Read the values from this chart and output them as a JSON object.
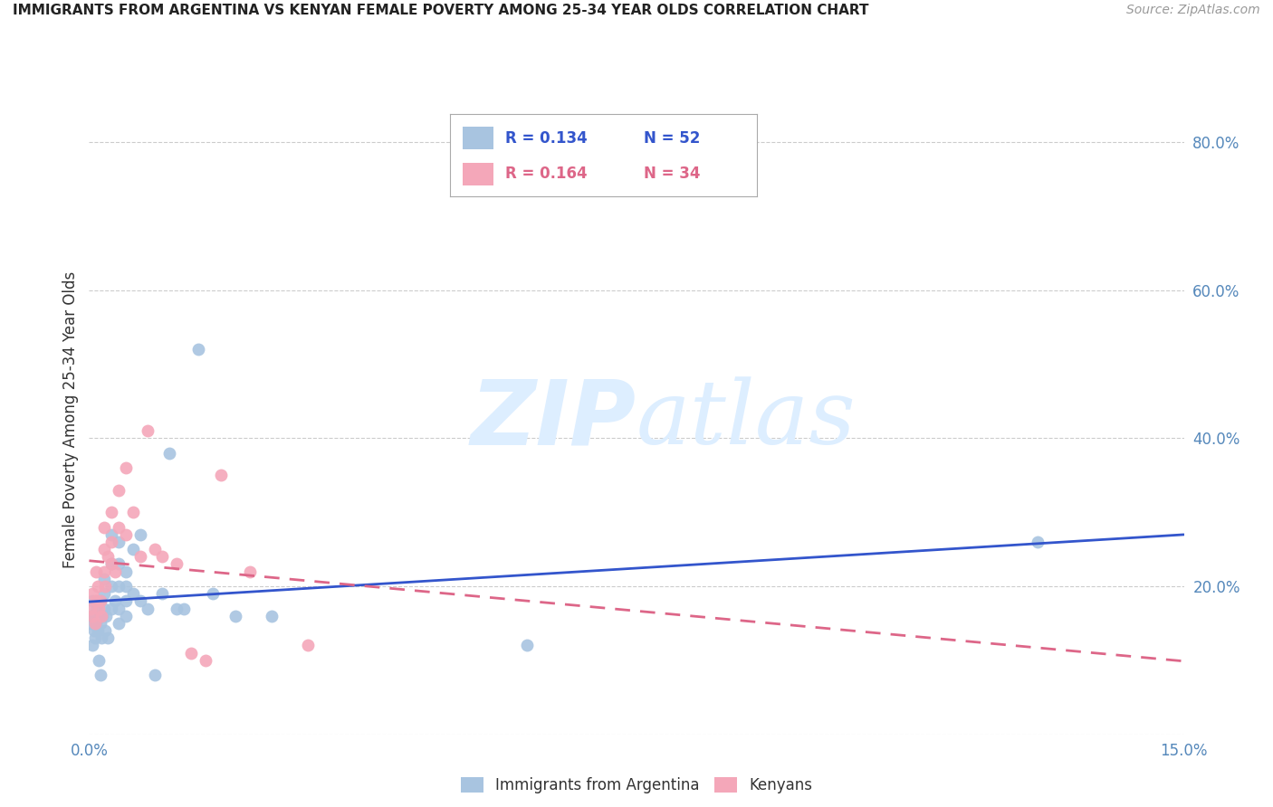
{
  "title": "IMMIGRANTS FROM ARGENTINA VS KENYAN FEMALE POVERTY AMONG 25-34 YEAR OLDS CORRELATION CHART",
  "source": "Source: ZipAtlas.com",
  "ylabel": "Female Poverty Among 25-34 Year Olds",
  "xlim": [
    0.0,
    0.15
  ],
  "ylim": [
    0.0,
    0.85
  ],
  "xticks": [
    0.0,
    0.03,
    0.06,
    0.09,
    0.12,
    0.15
  ],
  "xtick_labels": [
    "0.0%",
    "",
    "",
    "",
    "",
    "15.0%"
  ],
  "ytick_labels_right": [
    "",
    "20.0%",
    "40.0%",
    "60.0%",
    "80.0%"
  ],
  "yticks_right": [
    0.0,
    0.2,
    0.4,
    0.6,
    0.8
  ],
  "legend_label1_R": "0.134",
  "legend_label1_N": "52",
  "legend_label2_R": "0.164",
  "legend_label2_N": "34",
  "argentina_color": "#a8c4e0",
  "kenya_color": "#f4a7b9",
  "argentina_line_color": "#3355cc",
  "kenya_line_color": "#dd6688",
  "title_color": "#222222",
  "source_color": "#999999",
  "axis_label_color": "#333333",
  "tick_color": "#5588bb",
  "watermark_color": "#ddeeff",
  "background_color": "#ffffff",
  "grid_color": "#cccccc",
  "argentina_x": [
    0.0002,
    0.0003,
    0.0005,
    0.0005,
    0.0007,
    0.0008,
    0.0008,
    0.001,
    0.001,
    0.0012,
    0.0013,
    0.0015,
    0.0015,
    0.0015,
    0.0017,
    0.0018,
    0.002,
    0.002,
    0.002,
    0.0022,
    0.0023,
    0.0025,
    0.003,
    0.003,
    0.003,
    0.003,
    0.0035,
    0.004,
    0.004,
    0.004,
    0.004,
    0.004,
    0.005,
    0.005,
    0.005,
    0.005,
    0.006,
    0.006,
    0.007,
    0.007,
    0.008,
    0.009,
    0.01,
    0.011,
    0.012,
    0.013,
    0.015,
    0.017,
    0.02,
    0.025,
    0.06,
    0.13
  ],
  "argentina_y": [
    0.15,
    0.16,
    0.12,
    0.18,
    0.14,
    0.13,
    0.16,
    0.15,
    0.17,
    0.14,
    0.1,
    0.15,
    0.08,
    0.18,
    0.13,
    0.16,
    0.19,
    0.17,
    0.21,
    0.14,
    0.16,
    0.13,
    0.17,
    0.2,
    0.23,
    0.27,
    0.18,
    0.15,
    0.17,
    0.2,
    0.23,
    0.26,
    0.16,
    0.18,
    0.2,
    0.22,
    0.19,
    0.25,
    0.18,
    0.27,
    0.17,
    0.08,
    0.19,
    0.38,
    0.17,
    0.17,
    0.52,
    0.19,
    0.16,
    0.16,
    0.12,
    0.26
  ],
  "kenya_x": [
    0.0002,
    0.0004,
    0.0005,
    0.0008,
    0.001,
    0.001,
    0.0012,
    0.0013,
    0.0015,
    0.0017,
    0.002,
    0.002,
    0.002,
    0.0022,
    0.0025,
    0.003,
    0.003,
    0.003,
    0.0035,
    0.004,
    0.004,
    0.005,
    0.005,
    0.006,
    0.007,
    0.008,
    0.009,
    0.01,
    0.012,
    0.014,
    0.016,
    0.018,
    0.022,
    0.03
  ],
  "kenya_y": [
    0.17,
    0.16,
    0.19,
    0.15,
    0.18,
    0.22,
    0.2,
    0.17,
    0.18,
    0.16,
    0.22,
    0.25,
    0.28,
    0.2,
    0.24,
    0.3,
    0.23,
    0.26,
    0.22,
    0.28,
    0.33,
    0.36,
    0.27,
    0.3,
    0.24,
    0.41,
    0.25,
    0.24,
    0.23,
    0.11,
    0.1,
    0.35,
    0.22,
    0.12
  ]
}
